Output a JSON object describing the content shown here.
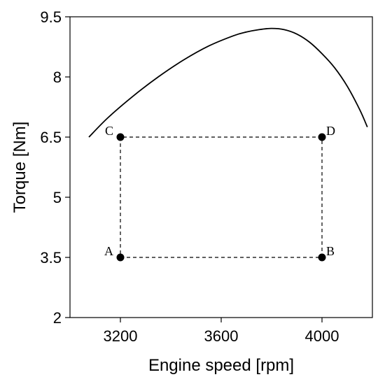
{
  "chart_data": {
    "type": "line",
    "xlabel": "Engine speed [rpm]",
    "ylabel": "Torque [Nm]",
    "xlim": [
      3000,
      4200
    ],
    "ylim": [
      2,
      9.5
    ],
    "x_ticks": [
      3200,
      3600,
      4000
    ],
    "y_ticks": [
      2,
      3.5,
      5,
      6.5,
      8,
      9.5
    ],
    "x_tick_labels": [
      "3200",
      "3600",
      "4000"
    ],
    "y_tick_labels": [
      "2",
      "3.5",
      "5",
      "6.5",
      "8",
      "9.5"
    ],
    "grid": false,
    "curve": {
      "x": [
        3075,
        3150,
        3250,
        3350,
        3450,
        3550,
        3650,
        3700,
        3750,
        3800,
        3850,
        3900,
        3950,
        4000,
        4050,
        4100,
        4150,
        4180
      ],
      "y": [
        6.5,
        6.98,
        7.52,
        8.0,
        8.42,
        8.77,
        9.03,
        9.12,
        9.18,
        9.21,
        9.18,
        9.07,
        8.87,
        8.58,
        8.23,
        7.77,
        7.18,
        6.75
      ]
    },
    "points": [
      {
        "label": "A",
        "x": 3200,
        "y": 3.5
      },
      {
        "label": "B",
        "x": 4000,
        "y": 3.5
      },
      {
        "label": "C",
        "x": 3200,
        "y": 6.5
      },
      {
        "label": "D",
        "x": 4000,
        "y": 6.5
      }
    ],
    "colors": {
      "line": "#000000",
      "dashed": "#000000",
      "point": "#000000"
    }
  }
}
